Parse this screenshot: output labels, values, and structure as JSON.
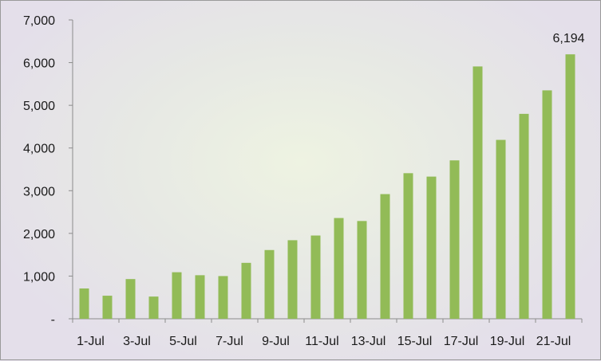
{
  "chart_data": {
    "type": "bar",
    "categories": [
      "1-Jul",
      "2-Jul",
      "3-Jul",
      "4-Jul",
      "5-Jul",
      "6-Jul",
      "7-Jul",
      "8-Jul",
      "9-Jul",
      "10-Jul",
      "11-Jul",
      "12-Jul",
      "13-Jul",
      "14-Jul",
      "15-Jul",
      "16-Jul",
      "17-Jul",
      "18-Jul",
      "19-Jul",
      "20-Jul",
      "21-Jul",
      "22-Jul"
    ],
    "x_tick_labels": [
      "1-Jul",
      "3-Jul",
      "5-Jul",
      "7-Jul",
      "9-Jul",
      "11-Jul",
      "13-Jul",
      "15-Jul",
      "17-Jul",
      "19-Jul",
      "21-Jul"
    ],
    "values": [
      710,
      540,
      930,
      520,
      1090,
      1020,
      1000,
      1310,
      1610,
      1840,
      1950,
      2360,
      2290,
      2920,
      3410,
      3330,
      3710,
      5910,
      4190,
      4800,
      5350,
      6194
    ],
    "y_tick_labels": [
      "-",
      "1,000",
      "2,000",
      "3,000",
      "4,000",
      "5,000",
      "6,000",
      "7,000"
    ],
    "ylim": [
      0,
      7000
    ],
    "data_labels": [
      {
        "index": 21,
        "text": "6,194"
      }
    ],
    "bar_color": "#92bb57",
    "grid": false,
    "legend": "none",
    "title": "",
    "xlabel": "",
    "ylabel": ""
  }
}
